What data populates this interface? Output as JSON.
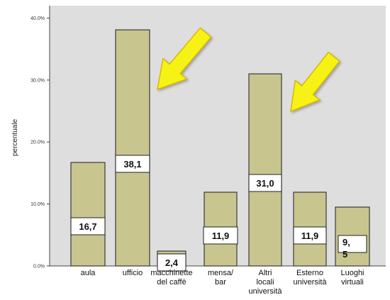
{
  "chart_data": {
    "type": "bar",
    "categories": [
      [
        "aula"
      ],
      [
        "ufficio"
      ],
      [
        "macchinette",
        "del caffè"
      ],
      [
        "mensa/",
        "bar"
      ],
      [
        "Altri",
        "locali",
        "università"
      ],
      [
        "Esterno",
        "università"
      ],
      [
        "Luoghi",
        "virtuali"
      ]
    ],
    "values": [
      16.7,
      38.1,
      2.4,
      11.9,
      31.0,
      11.9,
      9.5
    ],
    "data_labels": [
      [
        "16,7"
      ],
      [
        "38,1"
      ],
      [
        "2,4"
      ],
      [
        "11,9"
      ],
      [
        "31,0"
      ],
      [
        "11,9"
      ],
      [
        "9,",
        "5"
      ]
    ],
    "ylabel": "percentuale",
    "ylim": [
      0,
      42
    ],
    "yticks": [
      0,
      10,
      20,
      30,
      40
    ],
    "ytick_labels": [
      "0.0%",
      "10.0%",
      "20.0%",
      "30.0%",
      "40.0%"
    ],
    "grid": false,
    "arrows_point_to": [
      "ufficio",
      "Altri locali università"
    ],
    "colors": {
      "plot_background": "#dedede",
      "bar_fill": "#c8c58f",
      "bar_stroke": "#3a3a3a",
      "arrow_fill": "#f7f218",
      "arrow_stroke": "#d8b800",
      "label_box": "#ffffff"
    }
  }
}
